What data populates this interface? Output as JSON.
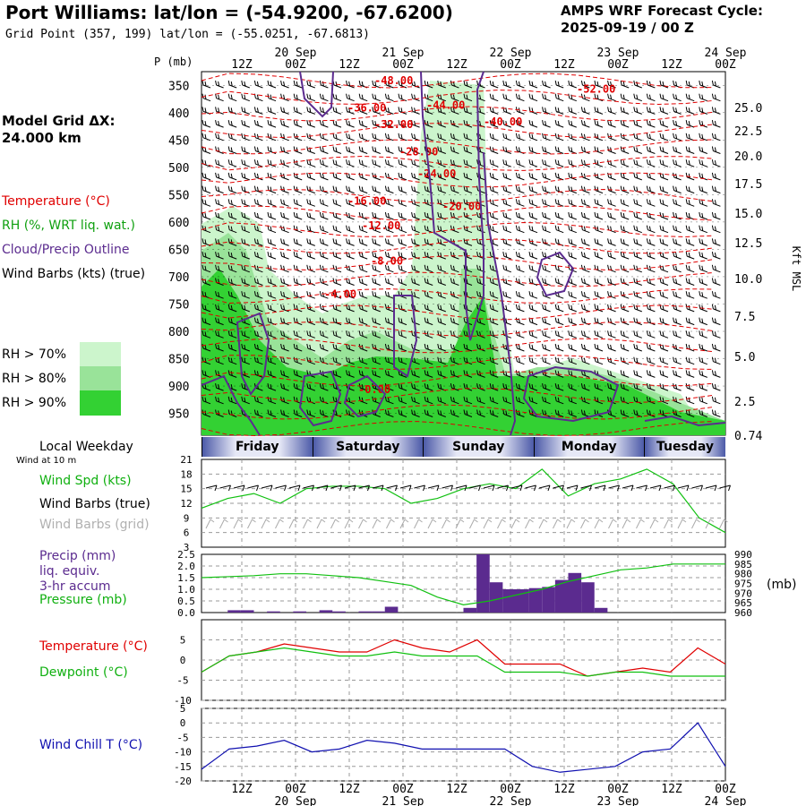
{
  "header": {
    "title": "Port Williams:  lat/lon = (-54.9200, -67.6200)",
    "subtitle": "Grid Point (357, 199) lat/lon = (-55.0251, -67.6813)",
    "cycle_line1": "AMPS WRF Forecast Cycle:",
    "cycle_line2": "2025-09-19 / 00  Z"
  },
  "model_grid": {
    "label": "Model Grid ΔX:",
    "value": " 24.000 km"
  },
  "upper_legend": {
    "temperature": "Temperature (°C)",
    "rh": "RH (%, WRT liq. wat.)",
    "cloud": "Cloud/Precip Outline",
    "wind": "Wind Barbs (kts) (true)",
    "rh70": "RH > 70%",
    "rh80": "RH > 80%",
    "rh90": "RH > 90%"
  },
  "axes": {
    "pressure_title": "P (mb)",
    "pressure_ticks": [
      "350",
      "400",
      "450",
      "500",
      "550",
      "600",
      "650",
      "700",
      "750",
      "800",
      "850",
      "900",
      "950"
    ],
    "height_title": "Kft MSL",
    "height_ticks": [
      "25.0",
      "22.5",
      "20.0",
      "17.5",
      "15.0",
      "12.5",
      "10.0",
      "7.5",
      "5.0",
      "2.5",
      "0.74"
    ],
    "time_ticks": [
      "12Z",
      "00Z",
      "12Z",
      "00Z",
      "12Z",
      "00Z",
      "12Z",
      "00Z",
      "12Z",
      "00Z"
    ],
    "date_labels": [
      "20 Sep",
      "21 Sep",
      "22 Sep",
      "23 Sep",
      "24 Sep"
    ]
  },
  "weekday": {
    "title": "Local Weekday",
    "wind_note": "Wind at 10 m",
    "days": [
      "Friday",
      "Saturday",
      "Sunday",
      "Monday",
      "Tuesday"
    ]
  },
  "lower_legend": {
    "wind_spd": "Wind Spd (kts)",
    "barbs_true": "Wind Barbs (true)",
    "barbs_grid": "Wind Barbs (grid)",
    "precip1": "Precip (mm)",
    "precip2": "liq. equiv.",
    "precip3": "3-hr accum",
    "pressure": "Pressure (mb)",
    "pressure_unit": "(mb)",
    "temp": "Temperature (°C)",
    "dew": "Dewpoint (°C)",
    "chill": "Wind Chill T (°C)"
  },
  "colors": {
    "temp": "#e00000",
    "green": "#10c010",
    "purple": "#5b2b8f",
    "blue": "#1010b0",
    "rh70": "#ccf5cc",
    "rh80": "#99e399",
    "rh90": "#33d133"
  },
  "chart_data": [
    {
      "type": "contour-cross-section",
      "title": "Vertical profile: temperature, RH, cloud/precip, wind",
      "ylabel": "P (mb)",
      "ylim": [
        325,
        990
      ],
      "temperature_contour_labels": [
        {
          "label": "-48.00",
          "p": 340
        },
        {
          "label": "-52.00",
          "p": 355
        },
        {
          "label": "-36.00",
          "p": 390
        },
        {
          "label": "-44.00",
          "p": 385
        },
        {
          "label": "-32.00",
          "p": 420
        },
        {
          "label": "-40.00",
          "p": 415
        },
        {
          "label": "-28.00",
          "p": 470
        },
        {
          "label": "-24.00",
          "p": 510
        },
        {
          "label": "-20.00",
          "p": 570
        },
        {
          "label": "-16.00",
          "p": 560
        },
        {
          "label": "-12.00",
          "p": 605
        },
        {
          "label": "-8.00",
          "p": 670
        },
        {
          "label": "-4.00",
          "p": 730
        },
        {
          "label": "-0.00",
          "p": 905
        }
      ]
    },
    {
      "type": "line",
      "title": "10 m wind speed",
      "ylabel": "kts",
      "ylim": [
        3,
        21
      ],
      "y_ticks": [
        3,
        6,
        9,
        12,
        15,
        18,
        21
      ],
      "x_hours": [
        0,
        6,
        12,
        18,
        24,
        30,
        36,
        42,
        48,
        54,
        60,
        66,
        72,
        78,
        84,
        90,
        96,
        102,
        108,
        114,
        120
      ],
      "series": [
        {
          "name": "Wind Spd (kts)",
          "values": [
            11,
            13,
            14,
            12,
            15,
            15.5,
            15.5,
            15,
            12,
            13,
            15,
            16,
            15,
            19,
            13.5,
            16,
            17,
            19,
            16,
            9,
            6
          ]
        }
      ]
    },
    {
      "type": "bar+line",
      "title": "Precip (mm) 3-hr accum and pressure",
      "precip_ylim": [
        0,
        2.5
      ],
      "precip_ticks": [
        "0.0",
        "0.5",
        "1.0",
        "1.5",
        "2.0",
        "2.5"
      ],
      "pressure_ylim": [
        960,
        990
      ],
      "pressure_ticks": [
        "960",
        "965",
        "970",
        "975",
        "980",
        "985",
        "990"
      ],
      "precip_bars": [
        0,
        0,
        0.1,
        0.1,
        0,
        0.05,
        0,
        0.05,
        0,
        0.1,
        0.05,
        0,
        0.05,
        0.05,
        0.25,
        0,
        0,
        0,
        0,
        0,
        0.2,
        2.5,
        1.3,
        1.0,
        1.0,
        1.05,
        1.1,
        1.4,
        1.7,
        1.3,
        0.2,
        0,
        0,
        0,
        0,
        0,
        0,
        0,
        0,
        0
      ],
      "pressure_values": [
        978,
        978.5,
        979,
        980,
        980,
        979,
        978,
        976,
        974,
        968,
        964,
        966,
        969,
        972,
        976,
        979,
        982,
        983,
        985,
        985,
        985
      ]
    },
    {
      "type": "line",
      "title": "Temperature and dewpoint",
      "ylim": [
        -10,
        10
      ],
      "y_ticks": [
        "5",
        "0",
        "-5",
        "-10"
      ],
      "series": [
        {
          "name": "Temperature (°C)",
          "values": [
            -3,
            1,
            2,
            4,
            3,
            2,
            2,
            5,
            3,
            2,
            5,
            -1,
            -1,
            -1,
            -4,
            -3,
            -2,
            -3,
            3,
            -1
          ]
        },
        {
          "name": "Dewpoint (°C)",
          "values": [
            -3,
            1,
            2,
            3,
            2,
            1,
            1,
            2,
            1,
            1,
            1,
            -3,
            -3,
            -3,
            -4,
            -3,
            -3,
            -4,
            -4,
            -4
          ]
        }
      ]
    },
    {
      "type": "line",
      "title": "Wind chill",
      "ylim": [
        -20,
        5
      ],
      "y_ticks": [
        "5",
        "0",
        "-5",
        "-10",
        "-15",
        "-20"
      ],
      "series": [
        {
          "name": "Wind Chill T (°C)",
          "values": [
            -16,
            -9,
            -8,
            -6,
            -10,
            -9,
            -6,
            -7,
            -9,
            -9,
            -9,
            -9,
            -15,
            -17,
            -16,
            -15,
            -10,
            -9,
            0,
            -15
          ]
        }
      ]
    }
  ]
}
